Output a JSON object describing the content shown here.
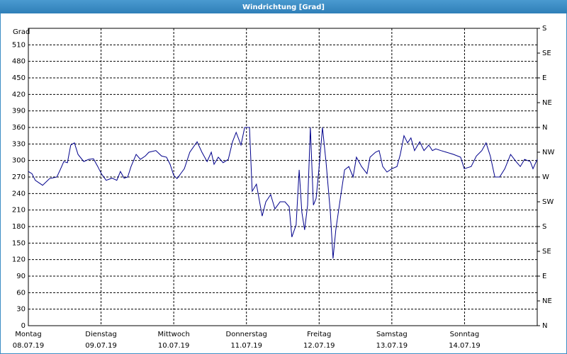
{
  "chart_data": {
    "type": "line",
    "title": "Windrichtung [Grad]",
    "ylabel": "Grad",
    "x": [
      0,
      1.2,
      2.3,
      4.7,
      7,
      9.4,
      10.5,
      11.7,
      12.9,
      14,
      15.2,
      16.4,
      18.3,
      19.9,
      21.5,
      22.9,
      24.1,
      25.7,
      27.6,
      29.2,
      30.4,
      31.6,
      32.8,
      33.9,
      35.6,
      37,
      38.6,
      39.8,
      42.1,
      44,
      45.6,
      46.8,
      48,
      49.1,
      51.5,
      53.3,
      55.7,
      57.3,
      59,
      60.4,
      61.3,
      62.7,
      64.3,
      66,
      67.4,
      68.6,
      70.2,
      71.4,
      72.1,
      73,
      73.9,
      75.3,
      77.2,
      78.4,
      80,
      81.4,
      83.1,
      84.7,
      86.1,
      87,
      88.4,
      89.4,
      90.3,
      91.2,
      92.2,
      93.1,
      94.1,
      95,
      95.9,
      97.1,
      98.3,
      99.7,
      100.6,
      101.5,
      103,
      104.4,
      105.8,
      107.2,
      108.3,
      110,
      111.8,
      112.8,
      114.6,
      115.8,
      117,
      118.4,
      120,
      121.7,
      122.8,
      124,
      125.2,
      126.3,
      127.5,
      129.2,
      130.6,
      132.2,
      133.4,
      134.5,
      136.2,
      138,
      140.4,
      142.7,
      143.9,
      146.2,
      147.9,
      149.7,
      151.1,
      152.5,
      154,
      155.6,
      157.3,
      159.2,
      161,
      162.4,
      163.8,
      165.7,
      166.6,
      168
    ],
    "series": [
      {
        "name": "Windrichtung",
        "color": "#00008b",
        "values": [
          280,
          276,
          264,
          255,
          267,
          270,
          283,
          298,
          296,
          328,
          332,
          311,
          298,
          302,
          303,
          289,
          276,
          264,
          268,
          264,
          280,
          268,
          270,
          289,
          311,
          302,
          308,
          315,
          318,
          308,
          306,
          293,
          273,
          267,
          285,
          315,
          334,
          315,
          298,
          315,
          293,
          306,
          296,
          302,
          334,
          351,
          328,
          360,
          360,
          360,
          244,
          257,
          199,
          225,
          238,
          212,
          225,
          225,
          216,
          161,
          183,
          283,
          206,
          174,
          219,
          360,
          219,
          231,
          283,
          360,
          296,
          206,
          122,
          174,
          231,
          283,
          289,
          270,
          306,
          289,
          276,
          306,
          315,
          318,
          289,
          279,
          285,
          289,
          311,
          345,
          332,
          341,
          318,
          334,
          318,
          328,
          318,
          321,
          318,
          315,
          311,
          306,
          285,
          289,
          308,
          318,
          332,
          308,
          270,
          270,
          285,
          311,
          298,
          289,
          302,
          298,
          285,
          302
        ]
      }
    ],
    "xlim": [
      0,
      168
    ],
    "xticks": [
      {
        "value": 0,
        "label": "Montag"
      },
      {
        "value": 24,
        "label": "Dienstag"
      },
      {
        "value": 48,
        "label": "Mittwoch"
      },
      {
        "value": 72,
        "label": "Donnerstag"
      },
      {
        "value": 96,
        "label": "Freitag"
      },
      {
        "value": 120,
        "label": "Samstag"
      },
      {
        "value": 144,
        "label": "Sonntag"
      }
    ],
    "xtick_dates": [
      "08.07.19",
      "09.07.19",
      "10.07.19",
      "11.07.19",
      "12.07.19",
      "13.07.19",
      "14.07.19"
    ],
    "ylim": [
      0,
      540
    ],
    "yticks": [
      0,
      30,
      60,
      90,
      120,
      150,
      180,
      210,
      240,
      270,
      300,
      330,
      360,
      390,
      420,
      450,
      480,
      510
    ],
    "y2lim": [
      0,
      540
    ],
    "y2ticks": [
      {
        "value": 0,
        "label": "N"
      },
      {
        "value": 45,
        "label": "NE"
      },
      {
        "value": 90,
        "label": "E"
      },
      {
        "value": 135,
        "label": "SE"
      },
      {
        "value": 180,
        "label": "S"
      },
      {
        "value": 225,
        "label": "SW"
      },
      {
        "value": 270,
        "label": "W"
      },
      {
        "value": 315,
        "label": "NW"
      },
      {
        "value": 360,
        "label": "N"
      },
      {
        "value": 405,
        "label": "NE"
      },
      {
        "value": 450,
        "label": "E"
      },
      {
        "value": 495,
        "label": "SE"
      },
      {
        "value": 540,
        "label": "S"
      }
    ],
    "grid": true
  }
}
